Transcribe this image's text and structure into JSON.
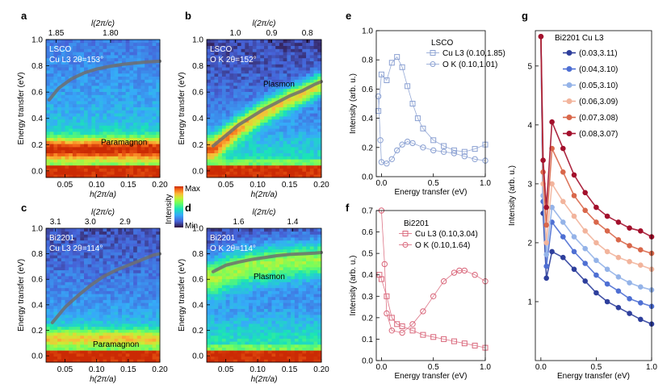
{
  "figure": {
    "panel_letters": [
      "a",
      "b",
      "c",
      "d",
      "e",
      "f",
      "g"
    ],
    "colorbar": {
      "title": "Intensity",
      "max": "Max",
      "min": "Min"
    }
  },
  "chart_data": [
    {
      "id": "a",
      "type": "heatmap",
      "labels": [
        "LSCO",
        "Cu L3 2θ=153°",
        "Paramagnon"
      ],
      "xlabel": "h(2π/a)",
      "ylabel": "Energy transfer (eV)",
      "top_label": "l(2π/c)",
      "xlim": [
        0.02,
        0.2
      ],
      "ylim": [
        -0.05,
        1.0
      ],
      "xticks": [
        "0.05",
        "0.10",
        "0.15",
        "0.20"
      ],
      "yticks": [
        "0.0",
        "0.2",
        "0.4",
        "0.6",
        "0.8",
        "1.0"
      ],
      "top_ticks": [
        "1.85",
        "1.80"
      ],
      "top_tick_h": [
        0.036,
        0.122
      ],
      "feature": {
        "kind": "paramagnon",
        "center": 0.17,
        "width": 0.08,
        "strength": 0.55,
        "background": 0.38
      },
      "dispersion": {
        "h": [
          0.025,
          0.04,
          0.06,
          0.08,
          0.1,
          0.12,
          0.14,
          0.16,
          0.18,
          0.2
        ],
        "energy": [
          0.54,
          0.63,
          0.7,
          0.745,
          0.775,
          0.795,
          0.81,
          0.82,
          0.83,
          0.835
        ]
      }
    },
    {
      "id": "b",
      "type": "heatmap",
      "labels": [
        "LSCO",
        "O K 2θ=152°",
        "Plasmon"
      ],
      "xlabel": "h(2π/a)",
      "ylabel": "Energy transfer (eV)",
      "top_label": "l(2π/c)",
      "xlim": [
        0.02,
        0.2
      ],
      "ylim": [
        -0.05,
        1.0
      ],
      "xticks": [
        "0.05",
        "0.10",
        "0.15",
        "0.20"
      ],
      "yticks": [
        "0.0",
        "0.2",
        "0.4",
        "0.6",
        "0.8",
        "1.0"
      ],
      "top_ticks": [
        "1.0",
        "0.9",
        "0.8"
      ],
      "top_tick_h": [
        0.065,
        0.122,
        0.178
      ],
      "feature": {
        "kind": "plasmon",
        "width": 0.09,
        "strength": 0.55,
        "background": 0.28
      },
      "dispersion": {
        "h": [
          0.03,
          0.05,
          0.07,
          0.09,
          0.11,
          0.13,
          0.15,
          0.17,
          0.19,
          0.2
        ],
        "energy": [
          0.19,
          0.27,
          0.35,
          0.41,
          0.47,
          0.52,
          0.57,
          0.61,
          0.66,
          0.68
        ]
      }
    },
    {
      "id": "c",
      "type": "heatmap",
      "labels": [
        "Bi2201",
        "Cu L3 2θ=114°",
        "Paramagnon"
      ],
      "xlabel": "h(2π/a)",
      "ylabel": "Energy transfer (eV)",
      "top_label": "l(2π/c)",
      "xlim": [
        0.02,
        0.2
      ],
      "ylim": [
        -0.05,
        1.0
      ],
      "xticks": [
        "0.05",
        "0.10",
        "0.15",
        "0.20"
      ],
      "yticks": [
        "0.0",
        "0.2",
        "0.4",
        "0.6",
        "0.8",
        "1.0"
      ],
      "top_ticks": [
        "3.1",
        "3.0",
        "2.9"
      ],
      "top_tick_h": [
        0.035,
        0.09,
        0.145
      ],
      "feature": {
        "kind": "paramagnon",
        "center": 0.14,
        "width": 0.07,
        "strength": 0.35,
        "background": 0.3
      },
      "dispersion": {
        "h": [
          0.03,
          0.05,
          0.07,
          0.09,
          0.11,
          0.13,
          0.15,
          0.17,
          0.19,
          0.2
        ],
        "energy": [
          0.26,
          0.38,
          0.47,
          0.55,
          0.62,
          0.67,
          0.71,
          0.75,
          0.79,
          0.8
        ]
      }
    },
    {
      "id": "d",
      "type": "heatmap",
      "labels": [
        "Bi2201",
        "O K 2θ=114°",
        "Plasmon"
      ],
      "xlabel": "h(2π/a)",
      "ylabel": "Energy transfer (eV)",
      "top_label": "l(2π/c)",
      "xlim": [
        0.02,
        0.2
      ],
      "ylim": [
        -0.05,
        1.0
      ],
      "xticks": [
        "0.05",
        "0.10",
        "0.15",
        "0.20"
      ],
      "yticks": [
        "0.0",
        "0.2",
        "0.4",
        "0.6",
        "0.8",
        "1.0"
      ],
      "top_ticks": [
        "1.6",
        "1.4"
      ],
      "top_tick_h": [
        0.07,
        0.155
      ],
      "feature": {
        "kind": "plasmon_d",
        "width": 0.15,
        "strength": 0.45,
        "background": 0.3
      },
      "dispersion": {
        "h": [
          0.03,
          0.05,
          0.07,
          0.09,
          0.11,
          0.13,
          0.15,
          0.17,
          0.19,
          0.2
        ],
        "energy": [
          0.66,
          0.71,
          0.735,
          0.755,
          0.77,
          0.785,
          0.795,
          0.8,
          0.805,
          0.81
        ]
      }
    },
    {
      "id": "e",
      "type": "scatter",
      "title": "LSCO",
      "xlabel": "Energy transfer (eV)",
      "ylabel": "Intensity (arb. u.)",
      "xlim": [
        -0.05,
        1.0
      ],
      "ylim": [
        0,
        1.0
      ],
      "xticks": [
        "0.0",
        "0.5",
        "1.0"
      ],
      "yticks": [
        "0.0",
        "0.2",
        "0.4",
        "0.6",
        "0.8",
        "1.0"
      ],
      "series": [
        {
          "name": "Cu L3 (0.10,1.85)",
          "marker": "square",
          "color": "#8aa0d2",
          "x": [
            -0.03,
            0.0,
            0.05,
            0.1,
            0.15,
            0.2,
            0.25,
            0.3,
            0.35,
            0.4,
            0.5,
            0.6,
            0.7,
            0.8,
            0.9,
            1.0
          ],
          "y": [
            0.45,
            0.7,
            0.66,
            0.78,
            0.82,
            0.75,
            0.62,
            0.5,
            0.4,
            0.33,
            0.25,
            0.21,
            0.18,
            0.17,
            0.19,
            0.22
          ]
        },
        {
          "name": "O K (0.10,1.01)",
          "marker": "circle",
          "color": "#8aa0d2",
          "x": [
            -0.03,
            -0.01,
            0.0,
            0.05,
            0.1,
            0.15,
            0.2,
            0.25,
            0.3,
            0.4,
            0.5,
            0.6,
            0.7,
            0.8,
            0.9,
            1.0
          ],
          "y": [
            0.55,
            0.25,
            0.1,
            0.09,
            0.12,
            0.18,
            0.22,
            0.24,
            0.23,
            0.2,
            0.18,
            0.17,
            0.16,
            0.14,
            0.12,
            0.11
          ]
        }
      ]
    },
    {
      "id": "f",
      "type": "scatter",
      "title": "Bi2201",
      "xlabel": "Energy transfer (eV)",
      "ylabel": "Intensity (arb. u.)",
      "xlim": [
        -0.05,
        1.0
      ],
      "ylim": [
        0,
        0.7
      ],
      "xticks": [
        "0.0",
        "0.5",
        "1.0"
      ],
      "yticks": [
        "0.0",
        "0.1",
        "0.2",
        "0.3",
        "0.4",
        "0.5",
        "0.6",
        "0.7"
      ],
      "series": [
        {
          "name": "Cu L3 (0.10,3.04)",
          "marker": "square",
          "color": "#d9667a",
          "x": [
            -0.02,
            0.0,
            0.05,
            0.1,
            0.15,
            0.2,
            0.3,
            0.4,
            0.5,
            0.6,
            0.7,
            0.8,
            0.9,
            1.0
          ],
          "y": [
            0.4,
            0.38,
            0.3,
            0.2,
            0.17,
            0.16,
            0.14,
            0.12,
            0.11,
            0.1,
            0.09,
            0.08,
            0.07,
            0.06
          ]
        },
        {
          "name": "O K (0.10,1.64)",
          "marker": "circle",
          "color": "#d9667a",
          "x": [
            0.0,
            0.03,
            0.05,
            0.1,
            0.2,
            0.3,
            0.4,
            0.5,
            0.6,
            0.7,
            0.75,
            0.8,
            0.9,
            1.0
          ],
          "y": [
            0.7,
            0.45,
            0.22,
            0.14,
            0.13,
            0.17,
            0.23,
            0.3,
            0.37,
            0.41,
            0.42,
            0.42,
            0.4,
            0.37
          ]
        }
      ]
    },
    {
      "id": "g",
      "type": "line",
      "title": "Bi2201 Cu L3",
      "xlabel": "Energy transfer (eV)",
      "ylabel": "Intensity (arb. u.)",
      "xlim": [
        -0.05,
        1.0
      ],
      "ylim": [
        0.0,
        5.6
      ],
      "xticks": [
        "0.0",
        "0.5",
        "1.0"
      ],
      "yticks": [
        "1",
        "2",
        "3",
        "4",
        "5"
      ],
      "series": [
        {
          "name": "(0.03,3.11)",
          "color": "#2e3f9c",
          "x": [
            0.0,
            0.02,
            0.05,
            0.1,
            0.2,
            0.3,
            0.4,
            0.5,
            0.6,
            0.7,
            0.8,
            0.9,
            1.0
          ],
          "y": [
            5.5,
            2.5,
            1.4,
            1.85,
            1.75,
            1.55,
            1.35,
            1.15,
            1.0,
            0.9,
            0.8,
            0.7,
            0.62
          ]
        },
        {
          "name": "(0.04,3.10)",
          "color": "#4e6fd3",
          "x": [
            0.0,
            0.02,
            0.05,
            0.1,
            0.2,
            0.3,
            0.4,
            0.5,
            0.6,
            0.7,
            0.8,
            0.9,
            1.0
          ],
          "y": [
            5.5,
            2.7,
            1.6,
            2.35,
            2.1,
            1.85,
            1.65,
            1.45,
            1.3,
            1.18,
            1.05,
            0.98,
            0.92
          ]
        },
        {
          "name": "(0.05,3.10)",
          "color": "#94b3e8",
          "x": [
            0.0,
            0.02,
            0.05,
            0.1,
            0.2,
            0.3,
            0.4,
            0.5,
            0.6,
            0.7,
            0.8,
            0.9,
            1.0
          ],
          "y": [
            5.5,
            2.8,
            1.8,
            2.6,
            2.35,
            2.1,
            1.9,
            1.7,
            1.55,
            1.42,
            1.32,
            1.25,
            1.2
          ]
        },
        {
          "name": "(0.06,3.09)",
          "color": "#f2b49c",
          "x": [
            0.0,
            0.02,
            0.05,
            0.1,
            0.2,
            0.3,
            0.4,
            0.5,
            0.6,
            0.7,
            0.8,
            0.9,
            1.0
          ],
          "y": [
            5.5,
            3.0,
            2.0,
            3.0,
            2.7,
            2.45,
            2.2,
            2.0,
            1.85,
            1.75,
            1.68,
            1.62,
            1.55
          ]
        },
        {
          "name": "(0.07,3.08)",
          "color": "#d9674a",
          "x": [
            0.0,
            0.02,
            0.05,
            0.1,
            0.2,
            0.3,
            0.4,
            0.5,
            0.6,
            0.7,
            0.8,
            0.9,
            1.0
          ],
          "y": [
            5.5,
            3.2,
            2.3,
            3.6,
            3.2,
            2.8,
            2.55,
            2.35,
            2.2,
            2.05,
            1.95,
            1.88,
            1.82
          ]
        },
        {
          "name": "(0.08,3.07)",
          "color": "#a3102c",
          "x": [
            0.0,
            0.02,
            0.05,
            0.1,
            0.2,
            0.3,
            0.4,
            0.5,
            0.6,
            0.7,
            0.8,
            0.9,
            1.0
          ],
          "y": [
            5.5,
            3.4,
            2.6,
            4.05,
            3.6,
            3.15,
            2.85,
            2.6,
            2.45,
            2.35,
            2.25,
            2.2,
            2.1
          ]
        }
      ]
    }
  ]
}
